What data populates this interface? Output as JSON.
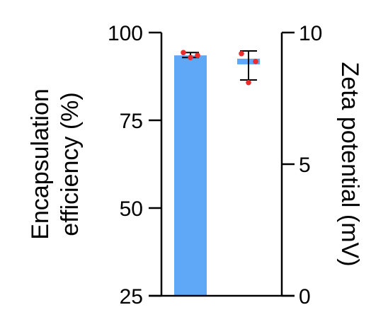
{
  "chart_data": {
    "type": "bar",
    "categories": [
      "Encapsulation efficiency",
      "Zeta potential"
    ],
    "colors": {
      "bar": "#5ea8f7",
      "points": "#ee2b2b",
      "axis": "#000000"
    },
    "left_axis": {
      "label_lines": [
        "Encapsulation",
        "efficiency (%)"
      ],
      "ylim": [
        25,
        100
      ],
      "ticks": [
        25,
        50,
        75,
        100
      ],
      "tick_labels": [
        "25",
        "50",
        "75",
        "100"
      ]
    },
    "right_axis": {
      "label": "Zeta potential (mV)",
      "ylim": [
        0,
        10
      ],
      "ticks": [
        0,
        5,
        10
      ],
      "tick_labels": [
        "0",
        "5",
        "10"
      ]
    },
    "series": [
      {
        "axis": "left",
        "value": 93.5,
        "error": [
          92.9,
          94.3
        ],
        "points": [
          94.3,
          92.9,
          93.5
        ]
      },
      {
        "axis": "right",
        "value": 8.9,
        "error": [
          8.2,
          9.3
        ],
        "points": [
          9.2,
          8.1,
          8.9
        ]
      }
    ]
  }
}
